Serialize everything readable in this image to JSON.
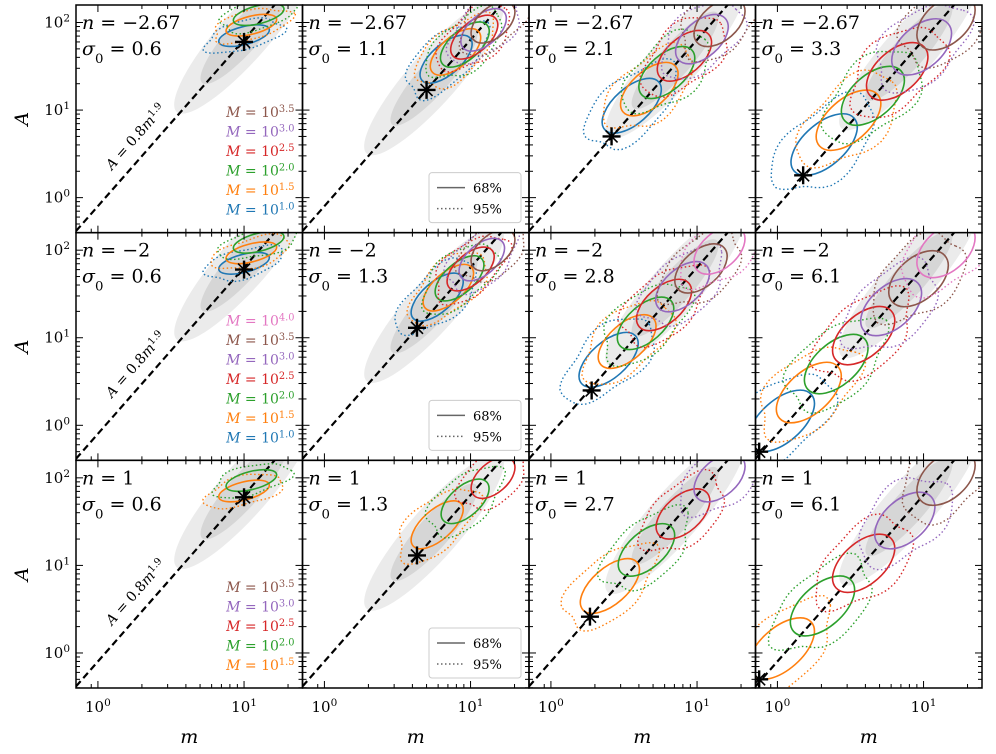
{
  "chart_data": {
    "type": "scatter",
    "layout": "3x4 grid of log-log panels",
    "xlabel": "m",
    "ylabel": "A",
    "x_ticks": [
      "10^0",
      "10^1"
    ],
    "y_ticks": [
      "10^0",
      "10^1",
      "10^2"
    ],
    "xlim_log10": [
      -0.15,
      1.4
    ],
    "ylim_log10": [
      -0.4,
      2.2
    ],
    "reference_line": {
      "label": "A = 0.8m^1.9",
      "coef": 0.8,
      "exponent": 1.9
    },
    "confidence_legend": [
      {
        "label": "68%",
        "style": "solid"
      },
      {
        "label": "95%",
        "style": "dotted"
      }
    ],
    "mass_colors": {
      "1.0": "#1f77b4",
      "1.5": "#ff7f0e",
      "2.0": "#2ca02c",
      "2.5": "#d62728",
      "3.0": "#9467bd",
      "3.5": "#8c564b",
      "4.0": "#e377c2"
    },
    "rows": [
      {
        "n_text": "−2.67",
        "mass_legend_logM": [
          "3.5",
          "3.0",
          "2.5",
          "2.0",
          "1.5",
          "1.0"
        ],
        "panels": [
          {
            "sigma0": "0.6",
            "star_m": 10.0,
            "star_A": 60,
            "masses": [
              "1.0",
              "1.5",
              "2.0"
            ],
            "gray": [
              1.0,
              1.4
            ]
          },
          {
            "sigma0": "1.1",
            "star_m": 5.0,
            "star_A": 17,
            "masses": [
              "1.0",
              "1.5",
              "2.0",
              "2.5",
              "3.0",
              "3.5"
            ],
            "gray": [
              0.75,
              1.15
            ]
          },
          {
            "sigma0": "2.1",
            "star_m": 2.6,
            "star_A": 5,
            "masses": [
              "1.0",
              "1.5",
              "2.0",
              "2.5",
              "3.0",
              "3.5"
            ],
            "gray": [
              0.85,
              1.15
            ]
          },
          {
            "sigma0": "3.3",
            "star_m": 1.5,
            "star_A": 1.8,
            "masses": [
              "1.0",
              "1.5",
              "2.0",
              "2.5",
              "3.0",
              "3.5"
            ],
            "gray": [
              0.9,
              1.15
            ]
          }
        ]
      },
      {
        "n_text": "−2",
        "mass_legend_logM": [
          "4.0",
          "3.5",
          "3.0",
          "2.5",
          "2.0",
          "1.5",
          "1.0"
        ],
        "panels": [
          {
            "sigma0": "0.6",
            "star_m": 10.0,
            "star_A": 60,
            "masses": [
              "1.0",
              "1.5",
              "2.0"
            ],
            "gray": [
              1.0,
              1.4
            ]
          },
          {
            "sigma0": "1.3",
            "star_m": 4.3,
            "star_A": 13,
            "masses": [
              "1.0",
              "1.5",
              "2.0",
              "2.5",
              "3.0",
              "3.5"
            ],
            "gray": [
              0.75,
              1.15
            ]
          },
          {
            "sigma0": "2.8",
            "star_m": 1.9,
            "star_A": 2.5,
            "masses": [
              "1.0",
              "1.5",
              "2.0",
              "2.5",
              "3.0",
              "3.5",
              "4.0"
            ],
            "gray": [
              0.85,
              1.15
            ]
          },
          {
            "sigma0": "6.1",
            "star_m": 0.75,
            "star_A": 0.5,
            "masses": [
              "1.0",
              "1.5",
              "2.0",
              "2.5",
              "3.0",
              "3.5",
              "4.0"
            ],
            "gray": [
              0.9,
              1.15
            ]
          }
        ]
      },
      {
        "n_text": "1",
        "mass_legend_logM": [
          "3.5",
          "3.0",
          "2.5",
          "2.0",
          "1.5"
        ],
        "panels": [
          {
            "sigma0": "0.6",
            "star_m": 10.0,
            "star_A": 60,
            "masses": [
              "1.5",
              "2.0"
            ],
            "gray": [
              1.0,
              1.4
            ]
          },
          {
            "sigma0": "1.3",
            "star_m": 4.3,
            "star_A": 13,
            "masses": [
              "1.5",
              "2.0",
              "2.5"
            ],
            "gray": [
              0.75,
              1.15
            ]
          },
          {
            "sigma0": "2.7",
            "star_m": 1.85,
            "star_A": 2.6,
            "masses": [
              "1.5",
              "2.0",
              "2.5",
              "3.0"
            ],
            "gray": [
              0.85,
              1.15
            ]
          },
          {
            "sigma0": "6.1",
            "star_m": 0.75,
            "star_A": 0.5,
            "masses": [
              "1.5",
              "2.0",
              "2.5",
              "3.0",
              "3.5"
            ],
            "gray": [
              0.9,
              1.15
            ]
          }
        ]
      }
    ]
  }
}
